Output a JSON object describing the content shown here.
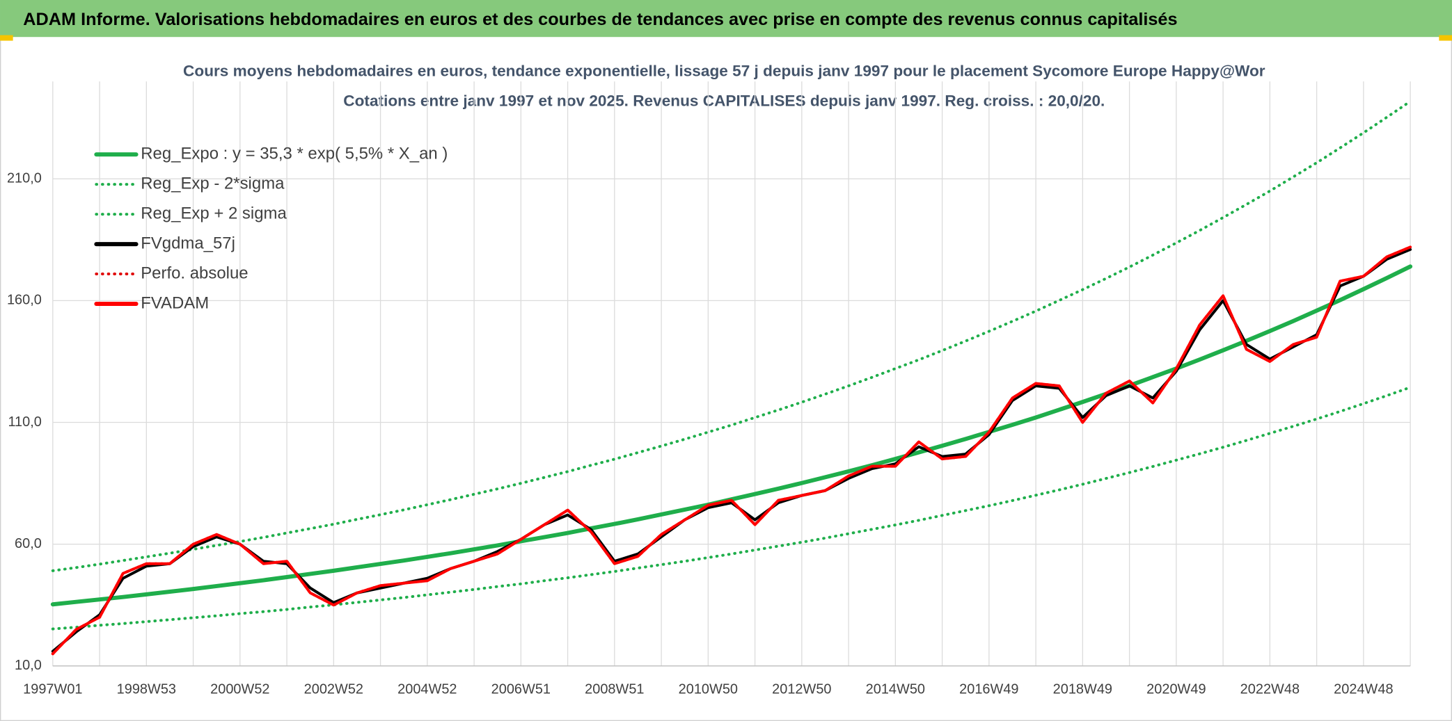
{
  "header": {
    "title": "ADAM Informe. Valorisations hebdomadaires en euros et des courbes de tendances avec prise en compte des revenus connus capitalisés"
  },
  "chart_data": {
    "type": "line",
    "title": "Cours moyens hebdomadaires en euros, tendance exponentielle, lissage 57 j depuis janv 1997 pour le placement Sycomore Europe Happy@Wor",
    "subtitle": "Cotations entre janv 1997 et nov 2025. Revenus CAPITALISES depuis janv 1997. Reg. croiss. : 20,0/20.",
    "grid": true,
    "legend": "top-left",
    "categories": [
      "1997W01",
      null,
      null,
      null,
      "1998W53",
      null,
      null,
      null,
      "2000W52",
      null,
      null,
      null,
      "2002W52",
      null,
      null,
      null,
      "2004W52",
      null,
      null,
      null,
      "2006W51",
      null,
      null,
      null,
      "2008W51",
      null,
      null,
      null,
      "2010W50",
      null,
      null,
      null,
      "2012W50",
      null,
      null,
      null,
      "2014W50",
      null,
      null,
      null,
      "2016W49",
      null,
      null,
      null,
      "2018W49",
      null,
      null,
      null,
      "2020W49",
      null,
      null,
      null,
      "2022W48",
      null,
      null,
      null,
      "2024W48",
      null,
      null
    ],
    "ylim": [
      10,
      250
    ],
    "yticks": [
      {
        "value": 10,
        "label": "10,0"
      },
      {
        "value": 60,
        "label": "60,0"
      },
      {
        "value": 110,
        "label": "110,0"
      },
      {
        "value": 160,
        "label": "160,0"
      },
      {
        "value": 210,
        "label": "210,0"
      }
    ],
    "series": [
      {
        "name": "Reg_Expo : y = 35,3 * exp( 5,5% *  X_an )",
        "color": "#1fae4b",
        "dashed": false,
        "values": [
          35.3,
          36.3,
          37.3,
          38.3,
          39.4,
          40.5,
          41.6,
          42.8,
          44.0,
          45.2,
          46.5,
          47.8,
          49.1,
          50.5,
          51.9,
          53.3,
          54.8,
          56.3,
          57.9,
          59.5,
          61.2,
          62.9,
          64.6,
          66.5,
          68.3,
          70.2,
          72.2,
          74.2,
          76.2,
          78.4,
          80.6,
          82.8,
          85.1,
          87.5,
          89.9,
          92.4,
          95.0,
          97.7,
          100.4,
          103.2,
          106.1,
          109.0,
          112.0,
          115.2,
          118.4,
          121.7,
          125.1,
          128.6,
          132.1,
          135.8,
          139.6,
          143.5,
          147.5,
          151.6,
          155.9,
          160.2,
          164.7,
          169.3,
          174.0
        ]
      },
      {
        "name": "Reg_Exp - 2*sigma",
        "color": "#1fae4b",
        "dashed": true,
        "values": [
          25.2,
          25.9,
          26.7,
          27.4,
          28.2,
          29.0,
          29.8,
          30.6,
          31.5,
          32.3,
          33.2,
          34.2,
          35.1,
          36.1,
          37.1,
          38.1,
          39.2,
          40.3,
          41.4,
          42.6,
          43.7,
          45.0,
          46.2,
          47.5,
          48.8,
          50.2,
          51.6,
          53.0,
          54.5,
          56.0,
          57.6,
          59.2,
          60.8,
          62.5,
          64.3,
          66.1,
          67.9,
          69.8,
          71.8,
          73.8,
          75.8,
          77.9,
          80.1,
          82.3,
          84.6,
          87.0,
          89.4,
          91.9,
          94.5,
          97.1,
          99.8,
          102.6,
          105.5,
          108.4,
          111.4,
          114.5,
          117.7,
          121.0,
          124.4
        ]
      },
      {
        "name": "Reg_Exp + 2 sigma",
        "color": "#1fae4b",
        "dashed": true,
        "values": [
          49.1,
          50.4,
          51.8,
          53.3,
          54.8,
          56.3,
          57.9,
          59.5,
          61.1,
          62.8,
          64.6,
          66.4,
          68.2,
          70.2,
          72.1,
          74.1,
          76.2,
          78.3,
          80.5,
          82.7,
          85.0,
          87.4,
          89.8,
          92.4,
          94.9,
          97.6,
          100.3,
          103.1,
          106.0,
          108.9,
          112.0,
          115.1,
          118.3,
          121.6,
          125.0,
          128.5,
          132.1,
          135.7,
          139.5,
          143.4,
          147.4,
          151.5,
          155.7,
          160.1,
          164.5,
          169.1,
          173.8,
          178.7,
          183.7,
          188.8,
          194.1,
          199.5,
          205.0,
          210.8,
          216.6,
          222.7,
          228.9,
          235.3,
          241.8
        ]
      },
      {
        "name": "FVgdma_57j",
        "color": "#000000",
        "dashed": false,
        "values": [
          16,
          24,
          31,
          46,
          51,
          52,
          59,
          63,
          60,
          53,
          52,
          42,
          36,
          40,
          42,
          44,
          46,
          50,
          53,
          57,
          62,
          68,
          72,
          66,
          53,
          56,
          63,
          70,
          75,
          77,
          70,
          77,
          80,
          82,
          87,
          91,
          93,
          100,
          96,
          97,
          105,
          119,
          125,
          124,
          112,
          121,
          125,
          120,
          131,
          148,
          160,
          142,
          136,
          141,
          146,
          166,
          170,
          177,
          181
        ]
      },
      {
        "name": "Perfo. absolue",
        "color": "#e00000",
        "dashed": true,
        "values": [
          15,
          25,
          30,
          48,
          52,
          52,
          60,
          64,
          60,
          52,
          53,
          40,
          35,
          40,
          43,
          44,
          45,
          50,
          53,
          56,
          62,
          68,
          74,
          65,
          52,
          55,
          64,
          70,
          76,
          78,
          68,
          78,
          80,
          82,
          88,
          92,
          92,
          102,
          95,
          96,
          106,
          120,
          126,
          125,
          110,
          122,
          127,
          118,
          132,
          150,
          162,
          140,
          135,
          142,
          145,
          168,
          170,
          178,
          182
        ]
      },
      {
        "name": "FVADAM",
        "color": "#ff0000",
        "dashed": false,
        "values": [
          15,
          25,
          30,
          48,
          52,
          52,
          60,
          64,
          60,
          52,
          53,
          40,
          35,
          40,
          43,
          44,
          45,
          50,
          53,
          56,
          62,
          68,
          74,
          65,
          52,
          55,
          64,
          70,
          76,
          78,
          68,
          78,
          80,
          82,
          88,
          92,
          92,
          102,
          95,
          96,
          106,
          120,
          126,
          125,
          110,
          122,
          127,
          118,
          132,
          150,
          162,
          140,
          135,
          142,
          145,
          168,
          170,
          178,
          182
        ]
      }
    ]
  }
}
